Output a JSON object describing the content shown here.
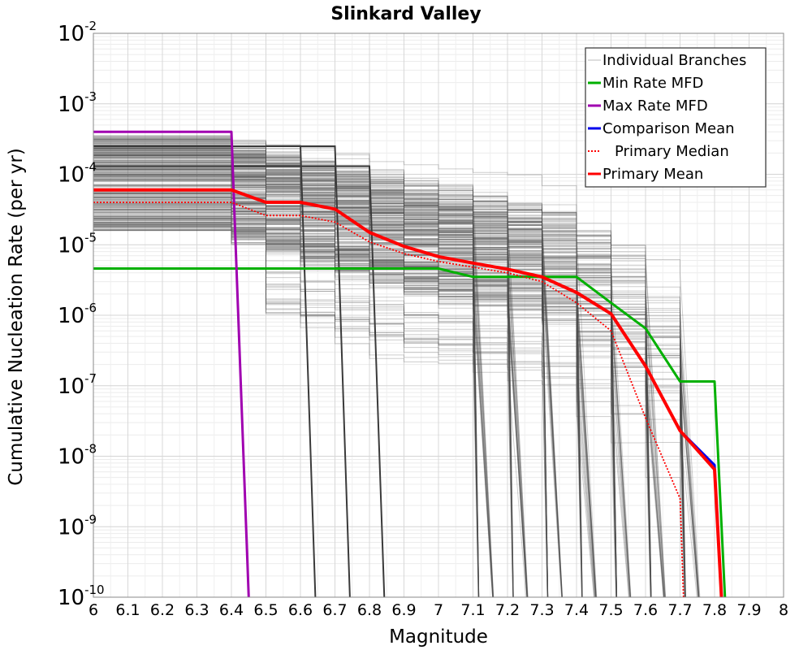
{
  "chart_data": {
    "type": "line",
    "title": "Slinkard Valley",
    "xlabel": "Magnitude",
    "ylabel": "Cumulative Nucleation Rate (per yr)",
    "xlim": [
      6,
      8
    ],
    "ylim": [
      1e-10,
      0.01
    ],
    "yscale": "log",
    "grid": true,
    "legend_position": "top-right",
    "x_ticks": [
      "6",
      "6.1",
      "6.2",
      "6.3",
      "6.4",
      "6.5",
      "6.6",
      "6.7",
      "6.8",
      "6.9",
      "7",
      "7.1",
      "7.2",
      "7.3",
      "7.4",
      "7.5",
      "7.6",
      "7.7",
      "7.8",
      "7.9",
      "8"
    ],
    "y_ticks": [
      {
        "base": "10",
        "exp": "-10"
      },
      {
        "base": "10",
        "exp": "-9"
      },
      {
        "base": "10",
        "exp": "-8"
      },
      {
        "base": "10",
        "exp": "-7"
      },
      {
        "base": "10",
        "exp": "-6"
      },
      {
        "base": "10",
        "exp": "-5"
      },
      {
        "base": "10",
        "exp": "-4"
      },
      {
        "base": "10",
        "exp": "-3"
      },
      {
        "base": "10",
        "exp": "-2"
      }
    ],
    "series": [
      {
        "name": "Min Rate MFD",
        "color": "#00b000",
        "style": "solid",
        "x": [
          6.0,
          6.4,
          6.5,
          6.6,
          6.7,
          6.8,
          6.9,
          7.0,
          7.1,
          7.2,
          7.3,
          7.4,
          7.5,
          7.6,
          7.7,
          7.8,
          7.83
        ],
        "y": [
          4.6e-06,
          4.6e-06,
          4.6e-06,
          4.6e-06,
          4.6e-06,
          4.6e-06,
          4.6e-06,
          4.6e-06,
          3.5e-06,
          3.5e-06,
          3.5e-06,
          3.5e-06,
          1.5e-06,
          6.5e-07,
          1.15e-07,
          1.15e-07,
          1e-10
        ]
      },
      {
        "name": "Max Rate MFD",
        "color": "#a000b0",
        "style": "solid",
        "x": [
          6.0,
          6.4,
          6.45
        ],
        "y": [
          0.0004,
          0.0004,
          1e-10
        ]
      },
      {
        "name": "Comparison Mean",
        "color": "#0000ee",
        "style": "solid",
        "x": [
          6.0,
          6.4,
          6.5,
          6.6,
          6.7,
          6.8,
          6.9,
          7.0,
          7.1,
          7.2,
          7.3,
          7.4,
          7.5,
          7.6,
          7.7,
          7.8,
          7.82
        ],
        "y": [
          6e-05,
          6e-05,
          4e-05,
          4e-05,
          3.2e-05,
          1.5e-05,
          9.5e-06,
          6.8e-06,
          5.5e-06,
          4.5e-06,
          3.5e-06,
          2.1e-06,
          1.05e-06,
          1.9e-07,
          2.3e-08,
          7.5e-09,
          1e-10
        ]
      },
      {
        "name": "Primary Median",
        "color": "#ff0000",
        "style": "dotted",
        "x": [
          6.0,
          6.4,
          6.5,
          6.6,
          6.7,
          6.8,
          6.9,
          7.0,
          7.1,
          7.2,
          7.3,
          7.4,
          7.5,
          7.6,
          7.7,
          7.71
        ],
        "y": [
          4e-05,
          4e-05,
          2.6e-05,
          2.6e-05,
          2.1e-05,
          1.1e-05,
          7.5e-06,
          5.8e-06,
          4.8e-06,
          4e-06,
          3e-06,
          1.5e-06,
          6e-07,
          3.5e-08,
          2.5e-09,
          1e-10
        ]
      },
      {
        "name": "Primary Mean",
        "color": "#ff0000",
        "style": "solid",
        "x": [
          6.0,
          6.4,
          6.5,
          6.6,
          6.7,
          6.8,
          6.9,
          7.0,
          7.1,
          7.2,
          7.3,
          7.4,
          7.5,
          7.6,
          7.7,
          7.8,
          7.82
        ],
        "y": [
          6e-05,
          6e-05,
          4e-05,
          4e-05,
          3.2e-05,
          1.5e-05,
          9.5e-06,
          6.8e-06,
          5.5e-06,
          4.5e-06,
          3.5e-06,
          2.1e-06,
          1.05e-06,
          1.9e-07,
          2.3e-08,
          6.5e-09,
          1e-10
        ]
      }
    ],
    "legend": [
      {
        "label": "Individual Branches",
        "color": "#bbbbbb",
        "style": "thin"
      },
      {
        "label": "Min Rate MFD",
        "color": "#00b000",
        "style": "solid"
      },
      {
        "label": "Max Rate MFD",
        "color": "#a000b0",
        "style": "solid"
      },
      {
        "label": "Comparison Mean",
        "color": "#0000ee",
        "style": "solid"
      },
      {
        "label": "Primary Median",
        "color": "#ff0000",
        "style": "dotted"
      },
      {
        "label": "Primary Mean",
        "color": "#ff0000",
        "style": "solid"
      }
    ]
  }
}
